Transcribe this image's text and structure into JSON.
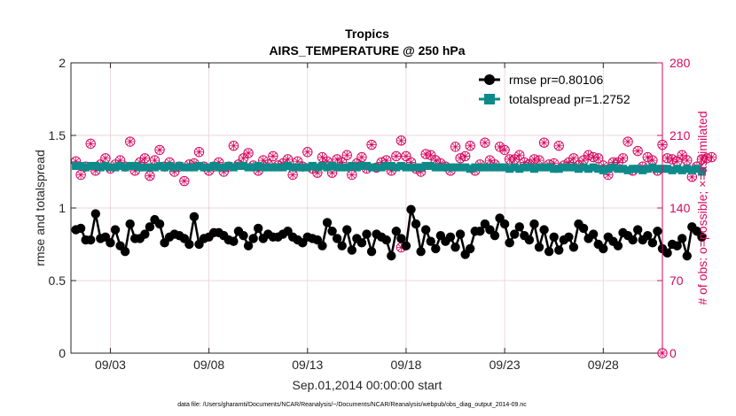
{
  "chart_data": {
    "type": "line",
    "title": "Tropics",
    "subtitle": "AIRS_TEMPERATURE @ 250 hPa",
    "xlabel": "Sep.01,2014 00:00:00 start",
    "ylabel_left": "rmse and totalspread",
    "ylabel_right": "# of obs: o=possible; ×=assimilated",
    "footnote": "data file: /Users/gharamti/Documents/NCAR/Reanalysis/~/Documents/NCAR/Reanalysis/webpub/obs_diag_output_2014-09.nc",
    "x_start_day": 1.25,
    "x_step_days": 0.25,
    "xlim": [
      1,
      31
    ],
    "x_ticks": [
      3,
      8,
      13,
      18,
      23,
      28
    ],
    "x_tick_labels": [
      "09/03",
      "09/08",
      "09/13",
      "09/18",
      "09/23",
      "09/28"
    ],
    "ylim_left": [
      0,
      2
    ],
    "yticks_left": [
      "0",
      "0.5",
      "1",
      "1.5",
      "2"
    ],
    "ylim_right": [
      0,
      280
    ],
    "yticks_right": [
      "0",
      "70",
      "140",
      "210",
      "280"
    ],
    "legend_position": "top-right",
    "grid": true,
    "colors": {
      "rmse": "#000000",
      "totalspread": "#0f8a8a",
      "obs": "#d6095f",
      "grid": "#e6c9d4"
    },
    "series": [
      {
        "name": "rmse pr=0.80106",
        "axis": "left",
        "values": [
          0.85,
          0.86,
          0.78,
          0.78,
          0.96,
          0.79,
          0.8,
          0.76,
          0.85,
          0.74,
          0.7,
          0.89,
          0.79,
          0.79,
          0.82,
          0.87,
          0.92,
          0.89,
          0.76,
          0.8,
          0.82,
          0.81,
          0.79,
          0.75,
          0.94,
          0.75,
          0.79,
          0.8,
          0.83,
          0.83,
          0.81,
          0.78,
          0.77,
          0.84,
          0.81,
          0.74,
          0.79,
          0.86,
          0.79,
          0.82,
          0.8,
          0.8,
          0.82,
          0.84,
          0.8,
          0.78,
          0.76,
          0.8,
          0.79,
          0.78,
          0.74,
          0.9,
          0.84,
          0.79,
          0.74,
          0.85,
          0.71,
          0.79,
          0.76,
          0.82,
          0.7,
          0.82,
          0.8,
          0.78,
          0.67,
          0.84,
          0.79,
          0.74,
          0.99,
          0.89,
          0.7,
          0.85,
          0.77,
          0.72,
          0.81,
          0.77,
          0.8,
          0.73,
          0.82,
          0.68,
          0.72,
          0.84,
          0.84,
          0.89,
          0.85,
          0.81,
          0.93,
          0.89,
          0.76,
          0.82,
          0.87,
          0.81,
          0.78,
          0.89,
          0.73,
          0.85,
          0.7,
          0.8,
          0.71,
          0.78,
          0.8,
          0.73,
          0.89,
          0.86,
          0.79,
          0.82,
          0.75,
          0.72,
          0.8,
          0.77,
          0.74,
          0.83,
          0.81,
          0.78,
          0.85,
          0.78,
          0.81,
          0.76,
          0.84,
          0.72,
          0.69,
          0.75,
          0.74,
          0.79,
          0.67,
          0.87,
          0.84,
          0.8
        ],
        "marker": "filled-circle"
      },
      {
        "name": "totalspread pr=1.2752",
        "axis": "left",
        "values": [
          1.29,
          1.29,
          1.28,
          1.29,
          1.29,
          1.28,
          1.29,
          1.28,
          1.28,
          1.29,
          1.28,
          1.29,
          1.29,
          1.28,
          1.28,
          1.28,
          1.28,
          1.29,
          1.28,
          1.29,
          1.28,
          1.29,
          1.28,
          1.28,
          1.28,
          1.29,
          1.28,
          1.28,
          1.29,
          1.28,
          1.28,
          1.29,
          1.28,
          1.29,
          1.29,
          1.28,
          1.28,
          1.29,
          1.28,
          1.28,
          1.28,
          1.28,
          1.28,
          1.29,
          1.28,
          1.28,
          1.28,
          1.28,
          1.29,
          1.28,
          1.29,
          1.28,
          1.29,
          1.28,
          1.28,
          1.28,
          1.29,
          1.28,
          1.29,
          1.29,
          1.28,
          1.28,
          1.28,
          1.29,
          1.29,
          1.28,
          1.29,
          1.28,
          1.28,
          1.28,
          1.28,
          1.29,
          1.29,
          1.28,
          1.28,
          1.28,
          1.28,
          1.28,
          1.28,
          1.28,
          1.27,
          1.28,
          1.28,
          1.28,
          1.28,
          1.28,
          1.28,
          1.28,
          1.27,
          1.28,
          1.27,
          1.28,
          1.28,
          1.27,
          1.28,
          1.28,
          1.28,
          1.27,
          1.27,
          1.28,
          1.28,
          1.28,
          1.27,
          1.28,
          1.27,
          1.28,
          1.27,
          1.26,
          1.27,
          1.28,
          1.27,
          1.27,
          1.26,
          1.27,
          1.27,
          1.26,
          1.27,
          1.28,
          1.27,
          1.27,
          1.27,
          1.26,
          1.27,
          1.26,
          1.27,
          1.26,
          1.27,
          1.25
        ],
        "marker": "filled-square"
      },
      {
        "name": "obs possible/assimilated",
        "axis": "right",
        "values": [
          185,
          172,
          180,
          202,
          176,
          182,
          188,
          178,
          182,
          186,
          180,
          204,
          176,
          184,
          188,
          171,
          186,
          196,
          180,
          184,
          175,
          180,
          166,
          182,
          183,
          194,
          180,
          176,
          180,
          184,
          175,
          180,
          200,
          182,
          188,
          193,
          181,
          176,
          186,
          182,
          190,
          181,
          183,
          187,
          172,
          185,
          180,
          194,
          178,
          174,
          189,
          185,
          174,
          187,
          184,
          191,
          172,
          183,
          189,
          178,
          201,
          179,
          184,
          186,
          176,
          190,
          205,
          190,
          184,
          178,
          175,
          192,
          191,
          186,
          183,
          180,
          176,
          199,
          188,
          190,
          200,
          176,
          182,
          203,
          186,
          182,
          199,
          196,
          187,
          187,
          191,
          184,
          182,
          187,
          186,
          203,
          182,
          183,
          200,
          181,
          184,
          188,
          181,
          186,
          191,
          189,
          188,
          181,
          172,
          184,
          184,
          188,
          204,
          176,
          195,
          180,
          189,
          186,
          176,
          201,
          188,
          187,
          185,
          191,
          186,
          170,
          180,
          187,
          188,
          189
        ],
        "marker": "circle-x"
      }
    ],
    "extra_points": [
      {
        "series": "obs",
        "x": 17.75,
        "value": 102
      },
      {
        "series": "obs",
        "x": 31,
        "value": 0
      }
    ]
  }
}
